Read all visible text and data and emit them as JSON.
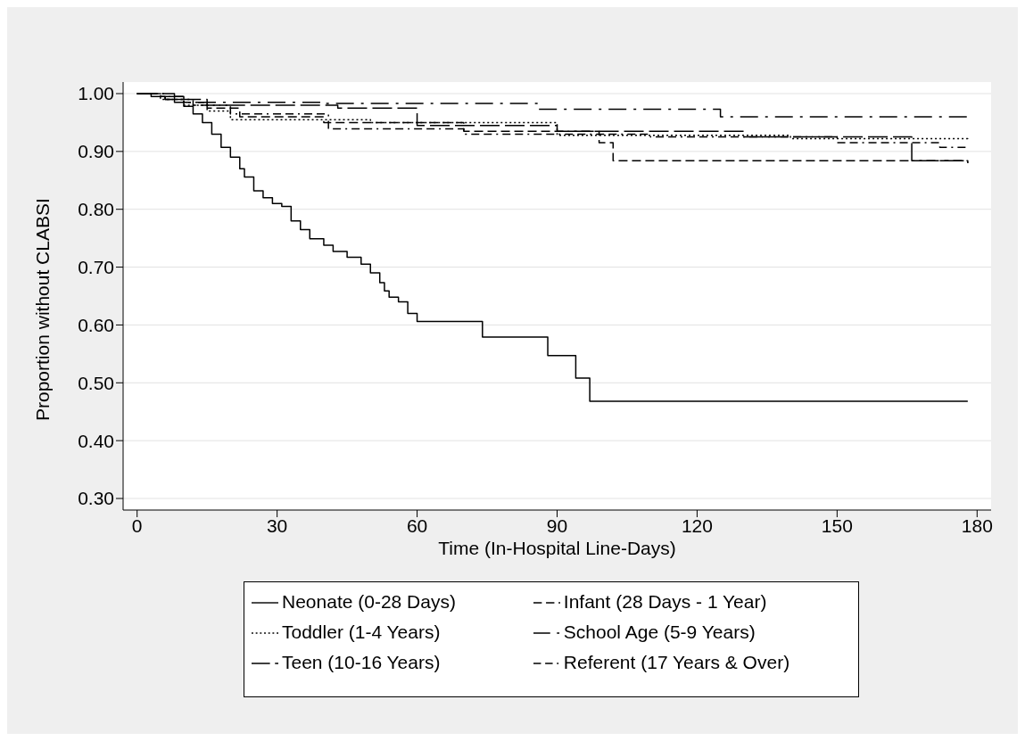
{
  "chart_data": {
    "type": "step",
    "xlabel": "Time (In-Hospital Line-Days)",
    "ylabel": "Proportion without CLABSI",
    "xlim": [
      -3,
      183
    ],
    "xticks": [
      0,
      30,
      60,
      90,
      120,
      150,
      180
    ],
    "ylim": [
      0.28,
      1.02
    ],
    "yticks": [
      {
        "value": 0.3,
        "label": "0.30"
      },
      {
        "value": 0.4,
        "label": "0.40"
      },
      {
        "value": 0.5,
        "label": "0.50"
      },
      {
        "value": 0.6,
        "label": "0.60"
      },
      {
        "value": 0.7,
        "label": "0.70"
      },
      {
        "value": 0.8,
        "label": "0.80"
      },
      {
        "value": 0.9,
        "label": "0.90"
      },
      {
        "value": 1.0,
        "label": "1.00"
      }
    ],
    "grid": "y",
    "legend": "bottom",
    "series": [
      {
        "name": "Neonate (0-28 Days)",
        "color": "#000000",
        "line_style": "solid",
        "x": [
          0,
          3,
          6,
          8,
          10,
          12,
          14,
          16,
          18,
          20,
          22,
          23,
          25,
          27,
          29,
          31,
          33,
          35,
          37,
          40,
          42,
          45,
          48,
          50,
          52,
          53,
          54,
          56,
          58,
          60,
          74,
          88,
          94,
          97,
          178
        ],
        "values": [
          1.0,
          0.995,
          0.99,
          0.985,
          0.978,
          0.965,
          0.95,
          0.93,
          0.907,
          0.89,
          0.87,
          0.856,
          0.832,
          0.82,
          0.81,
          0.805,
          0.78,
          0.765,
          0.749,
          0.738,
          0.727,
          0.717,
          0.705,
          0.69,
          0.673,
          0.659,
          0.648,
          0.64,
          0.62,
          0.606,
          0.579,
          0.547,
          0.508,
          0.468,
          0.468
        ]
      },
      {
        "name": "Infant (28 Days - 1 Year)",
        "color": "#000000",
        "line_style": "dashed",
        "x": [
          0,
          5,
          10,
          15,
          22,
          40,
          70,
          99,
          102,
          178
        ],
        "values": [
          1.0,
          0.995,
          0.985,
          0.975,
          0.96,
          0.95,
          0.935,
          0.915,
          0.884,
          0.88
        ]
      },
      {
        "name": "Toddler (1-4 Years)",
        "color": "#000000",
        "line_style": "dotted",
        "x": [
          0,
          5,
          10,
          15,
          20,
          50,
          90,
          140,
          178
        ],
        "values": [
          1.0,
          0.99,
          0.98,
          0.97,
          0.955,
          0.95,
          0.928,
          0.922,
          0.92
        ]
      },
      {
        "name": "School Age (5-9 Years)",
        "color": "#000000",
        "line_style": "dashed",
        "x": [
          0,
          5,
          10,
          40,
          86,
          125,
          178
        ],
        "values": [
          1.0,
          0.995,
          0.985,
          0.983,
          0.973,
          0.96,
          0.96
        ]
      },
      {
        "name": "Teen (10-16 Years)",
        "color": "#000000",
        "line_style": "dashed",
        "x": [
          0,
          8,
          15,
          43,
          60,
          90,
          130,
          166,
          178
        ],
        "values": [
          1.0,
          0.99,
          0.98,
          0.975,
          0.945,
          0.935,
          0.925,
          0.884,
          0.88
        ]
      },
      {
        "name": "Referent (17 Years & Over)",
        "color": "#000000",
        "line_style": "dashed",
        "x": [
          0,
          6,
          12,
          20,
          41,
          70,
          110,
          150,
          172,
          178
        ],
        "values": [
          1.0,
          0.99,
          0.98,
          0.965,
          0.939,
          0.93,
          0.925,
          0.915,
          0.907,
          0.907
        ]
      }
    ]
  }
}
